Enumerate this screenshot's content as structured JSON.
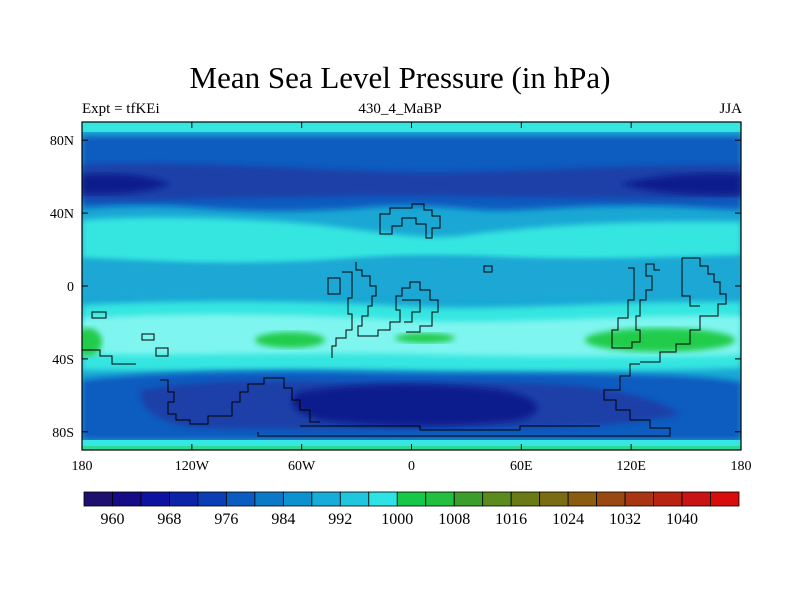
{
  "title": "Mean Sea Level Pressure (in hPa)",
  "subtitle_left": "Expt = tfKEi",
  "subtitle_center": "430_4_MaBP",
  "subtitle_right": "JJA",
  "map": {
    "lon_range": [
      -180,
      180
    ],
    "lat_range": [
      -90,
      90
    ],
    "lon_ticks": [
      {
        "value": -180,
        "label": "180"
      },
      {
        "value": -120,
        "label": "120W"
      },
      {
        "value": -60,
        "label": "60W"
      },
      {
        "value": 0,
        "label": "0"
      },
      {
        "value": 60,
        "label": "60E"
      },
      {
        "value": 120,
        "label": "120E"
      },
      {
        "value": 180,
        "label": "180"
      }
    ],
    "lat_ticks": [
      {
        "value": 80,
        "label": "80N"
      },
      {
        "value": 40,
        "label": "40N"
      },
      {
        "value": 0,
        "label": "0"
      },
      {
        "value": -40,
        "label": "40S"
      },
      {
        "value": -80,
        "label": "80S"
      }
    ],
    "colors": {
      "c980": "#1a3fa8",
      "c988": "#0a5cc0",
      "c992": "#1aa7d4",
      "c996": "#36e6e0",
      "c1000": "#7ff5f0",
      "c1008": "#22cc4c",
      "low": "#0a1a8c"
    }
  },
  "colorbar": {
    "colors": [
      "#1e1070",
      "#160c88",
      "#0e12a0",
      "#0b24a8",
      "#0b3eb4",
      "#0a5cc0",
      "#0b78c8",
      "#0c92ce",
      "#18acd8",
      "#20c6de",
      "#2de3e3",
      "#16c84a",
      "#23c040",
      "#3c9e2a",
      "#5c8a1c",
      "#6a7a14",
      "#7a6c10",
      "#8a5c10",
      "#9a4812",
      "#a83612",
      "#b82412",
      "#c81414",
      "#d80c0c"
    ],
    "labels": [
      "960",
      "968",
      "976",
      "984",
      "992",
      "1000",
      "1008",
      "1016",
      "1024",
      "1032",
      "1040"
    ]
  }
}
